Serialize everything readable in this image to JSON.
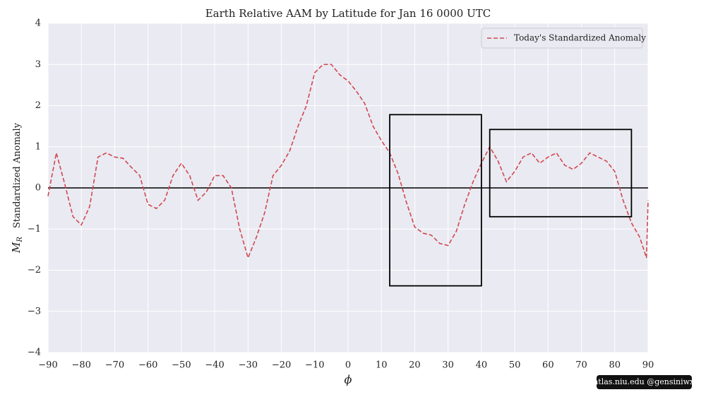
{
  "chart_data": {
    "type": "line",
    "title": "Earth Relative AAM by Latitude for Jan 16 0000 UTC",
    "xlabel": "ϕ",
    "ylabel_symbol": "M",
    "ylabel_subscript": "R",
    "ylabel": "Standardized Anomaly",
    "watermark": "atlas.niu.edu  @gensiniwx",
    "legend": "upper right",
    "grid": true,
    "hline": 0,
    "xlim": [
      -90,
      90
    ],
    "ylim": [
      -4,
      4
    ],
    "xticks": [
      {
        "value": -90,
        "label": "−90"
      },
      {
        "value": -80,
        "label": "−80"
      },
      {
        "value": -70,
        "label": "−70"
      },
      {
        "value": -60,
        "label": "−60"
      },
      {
        "value": -50,
        "label": "−50"
      },
      {
        "value": -40,
        "label": "−40"
      },
      {
        "value": -30,
        "label": "−30"
      },
      {
        "value": -20,
        "label": "−20"
      },
      {
        "value": -10,
        "label": "−10"
      },
      0,
      10,
      20,
      30,
      40,
      50,
      60,
      70,
      80,
      90
    ],
    "yticks": [
      {
        "value": -4,
        "label": "−4"
      },
      {
        "value": -3,
        "label": "−3"
      },
      {
        "value": -2,
        "label": "−2"
      },
      {
        "value": -1,
        "label": "−1"
      },
      0,
      1,
      2,
      3,
      4
    ],
    "x": [
      -90,
      -87.5,
      -85,
      -82.5,
      -80,
      -77.5,
      -75,
      -72.5,
      -70,
      -67.5,
      -65,
      -62.5,
      -60,
      -57.5,
      -55,
      -52.5,
      -50,
      -47.5,
      -45,
      -42.5,
      -40,
      -37.5,
      -35,
      -32.5,
      -30,
      -27.5,
      -25,
      -22.5,
      -20,
      -17.5,
      -15,
      -12.5,
      -10,
      -7.5,
      -5,
      -2.5,
      0,
      2.5,
      5,
      7.5,
      10,
      12.5,
      15,
      17.5,
      20,
      22.5,
      25,
      27.5,
      30,
      32.5,
      35,
      37.5,
      40,
      42.5,
      45,
      47.5,
      50,
      52.5,
      55,
      57.5,
      60,
      62.5,
      65,
      67.5,
      70,
      72.5,
      75,
      77.5,
      80,
      82.5,
      85,
      87.5,
      89.5,
      90
    ],
    "series": [
      {
        "name": "Today's Standardized Anomaly",
        "color": "#d1484f",
        "values": [
          -0.2,
          0.85,
          0.1,
          -0.7,
          -0.9,
          -0.45,
          0.75,
          0.85,
          0.75,
          0.72,
          0.5,
          0.3,
          -0.4,
          -0.5,
          -0.3,
          0.3,
          0.6,
          0.3,
          -0.3,
          -0.1,
          0.3,
          0.3,
          0.0,
          -1.0,
          -1.7,
          -1.2,
          -0.6,
          0.3,
          0.55,
          0.9,
          1.5,
          2.0,
          2.8,
          3.0,
          3.0,
          2.75,
          2.6,
          2.35,
          2.05,
          1.5,
          1.15,
          0.85,
          0.35,
          -0.35,
          -0.95,
          -1.1,
          -1.15,
          -1.35,
          -1.4,
          -1.05,
          -0.4,
          0.15,
          0.6,
          1.0,
          0.65,
          0.15,
          0.4,
          0.75,
          0.85,
          0.6,
          0.75,
          0.85,
          0.55,
          0.45,
          0.6,
          0.85,
          0.75,
          0.65,
          0.4,
          -0.3,
          -0.85,
          -1.2,
          -1.7,
          -0.3
        ]
      }
    ],
    "boxes": [
      {
        "x": [
          12.5,
          40
        ],
        "y": [
          -2.38,
          1.78
        ]
      },
      {
        "x": [
          42.5,
          85
        ],
        "y": [
          -0.7,
          1.42
        ]
      }
    ]
  }
}
